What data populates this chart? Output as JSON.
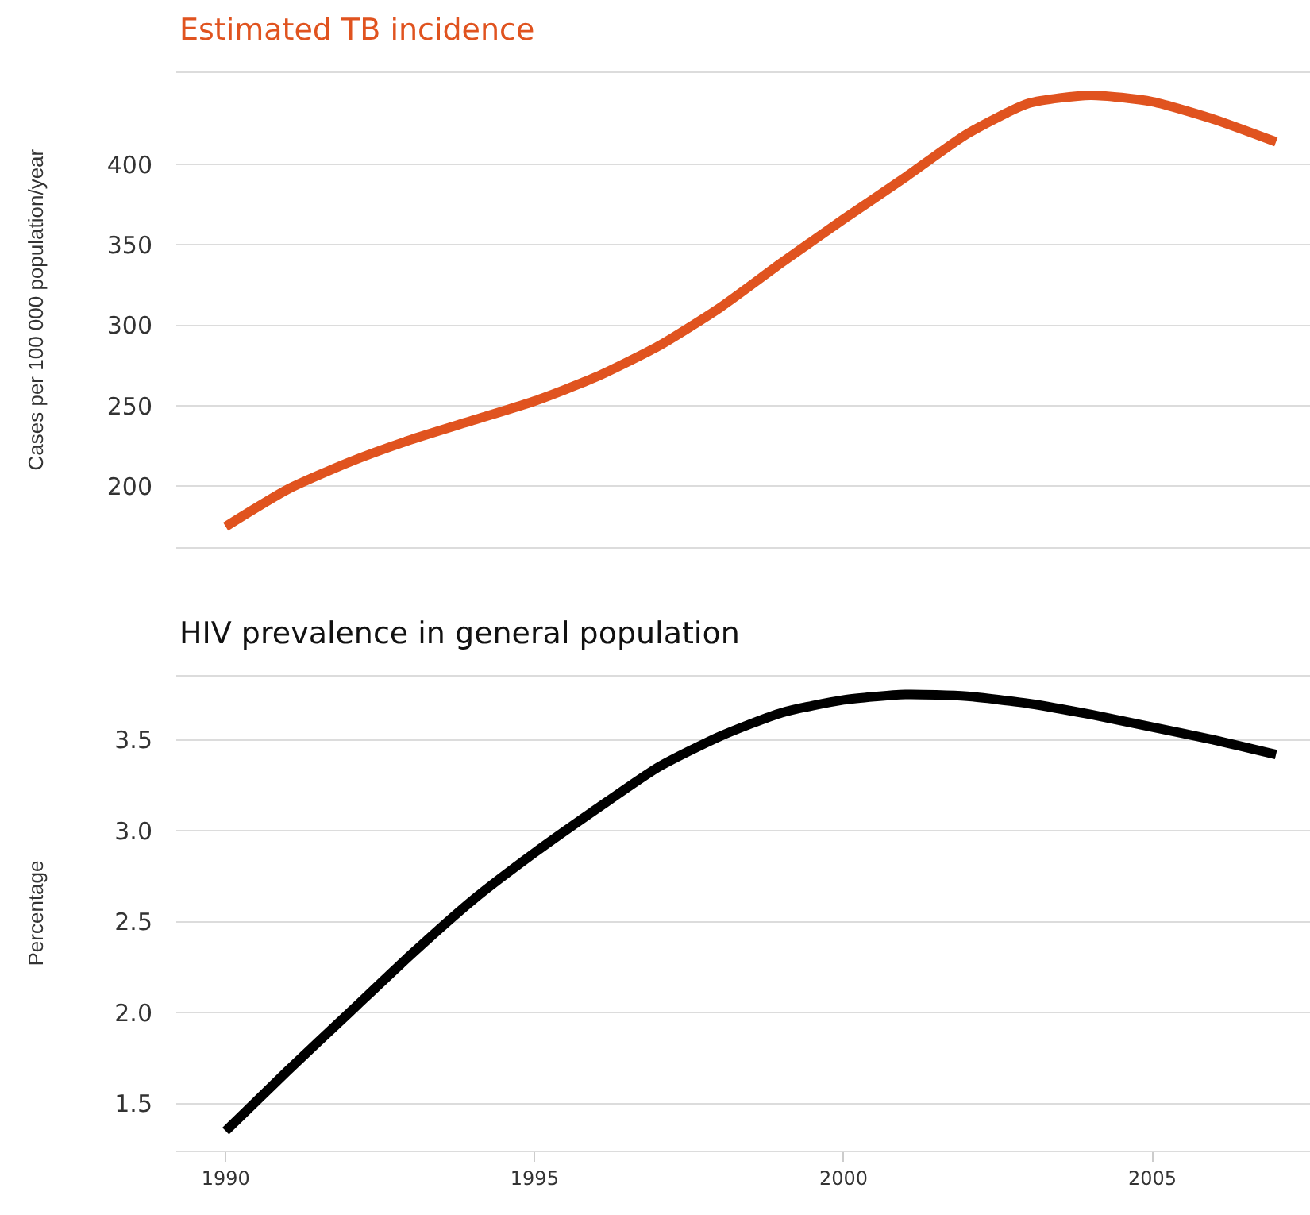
{
  "chart_data": [
    {
      "type": "line",
      "title": "Estimated TB incidence",
      "ylabel": "Cases per 100 000 population/year",
      "x": [
        1990,
        1991,
        1992,
        1993,
        1994,
        1995,
        1996,
        1997,
        1998,
        1999,
        2000,
        2001,
        2002,
        2003,
        2004,
        2005,
        2006,
        2007
      ],
      "series": [
        {
          "color": "#e0531f",
          "values": [
            175,
            198,
            215,
            229,
            241,
            253,
            268,
            287,
            311,
            339,
            366,
            392,
            419,
            438,
            443,
            439,
            428,
            414
          ]
        }
      ],
      "xlim": [
        1989.2,
        2007.55
      ],
      "ylim": [
        162,
        457
      ],
      "yticks": [
        200,
        250,
        300,
        350,
        400
      ],
      "xticks": [
        1990,
        1995,
        2000,
        2005
      ],
      "tick_labels": "y",
      "grid": "y",
      "marker": "none",
      "line_style": "solid"
    },
    {
      "type": "line",
      "title": "HIV prevalence in general population",
      "ylabel": "Percentage",
      "x": [
        1990,
        1991,
        1992,
        1993,
        1994,
        1995,
        1996,
        1997,
        1998,
        1999,
        2000,
        2001,
        2002,
        2003,
        2004,
        2005,
        2006,
        2007
      ],
      "series": [
        {
          "color": "#000000",
          "values": [
            1.35,
            1.68,
            2.0,
            2.32,
            2.62,
            2.88,
            3.12,
            3.35,
            3.52,
            3.65,
            3.72,
            3.75,
            3.74,
            3.7,
            3.64,
            3.57,
            3.5,
            3.42
          ]
        }
      ],
      "xlim": [
        1989.2,
        2007.55
      ],
      "ylim": [
        1.24,
        3.85
      ],
      "yticks": [
        {
          "value": 1.5,
          "label": "1.5"
        },
        {
          "value": 2.0,
          "label": "2.0"
        },
        {
          "value": 2.5,
          "label": "2.5"
        },
        {
          "value": 3.0,
          "label": "3.0"
        },
        {
          "value": 3.5,
          "label": "3.5"
        }
      ],
      "xticks": [
        1990,
        1995,
        2000,
        2005
      ],
      "grid": "y",
      "marker": "none",
      "line_style": "solid"
    }
  ]
}
